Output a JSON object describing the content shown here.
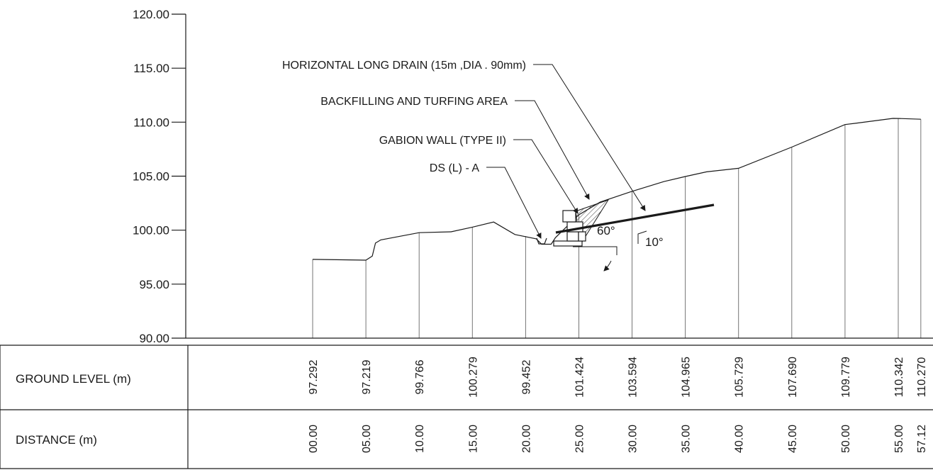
{
  "chart_data": {
    "type": "cross-section",
    "y_axis": {
      "min": 90,
      "max": 120,
      "ticks": [
        {
          "value": 90,
          "label": "90.00"
        },
        {
          "value": 95,
          "label": "95.00"
        },
        {
          "value": 100,
          "label": "100.00"
        },
        {
          "value": 105,
          "label": "105.00"
        },
        {
          "value": 110,
          "label": "110.00"
        },
        {
          "value": 115,
          "label": "115.00"
        },
        {
          "value": 120,
          "label": "120.00"
        }
      ]
    },
    "stations": [
      {
        "distance": 0,
        "distance_label": "00.00",
        "ground_level": 97.292,
        "ground_label": "97.292"
      },
      {
        "distance": 5,
        "distance_label": "05.00",
        "ground_level": 97.219,
        "ground_label": "97.219"
      },
      {
        "distance": 10,
        "distance_label": "10.00",
        "ground_level": 99.766,
        "ground_label": "99.766"
      },
      {
        "distance": 15,
        "distance_label": "15.00",
        "ground_level": 100.279,
        "ground_label": "100.279"
      },
      {
        "distance": 20,
        "distance_label": "20.00",
        "ground_level": 99.452,
        "ground_label": "99.452"
      },
      {
        "distance": 25,
        "distance_label": "25.00",
        "ground_level": 101.424,
        "ground_label": "101.424"
      },
      {
        "distance": 30,
        "distance_label": "30.00",
        "ground_level": 103.594,
        "ground_label": "103.594"
      },
      {
        "distance": 35,
        "distance_label": "35.00",
        "ground_level": 104.965,
        "ground_label": "104.965"
      },
      {
        "distance": 40,
        "distance_label": "40.00",
        "ground_level": 105.729,
        "ground_label": "105.729"
      },
      {
        "distance": 45,
        "distance_label": "45.00",
        "ground_level": 107.69,
        "ground_label": "107.690"
      },
      {
        "distance": 50,
        "distance_label": "50.00",
        "ground_level": 109.779,
        "ground_label": "109.779"
      },
      {
        "distance": 55,
        "distance_label": "55.00",
        "ground_level": 110.342,
        "ground_label": "110.342"
      },
      {
        "distance": 57.12,
        "distance_label": "57.12",
        "ground_level": 110.27,
        "ground_label": "110.270"
      }
    ],
    "profile": [
      [
        0,
        97.292
      ],
      [
        5,
        97.219
      ],
      [
        5.6,
        97.6
      ],
      [
        5.9,
        98.8
      ],
      [
        6.4,
        99.1
      ],
      [
        10,
        99.766
      ],
      [
        13,
        99.85
      ],
      [
        15,
        100.279
      ],
      [
        17,
        100.75
      ],
      [
        19,
        99.6
      ],
      [
        21,
        99.2
      ],
      [
        21.5,
        98.7
      ],
      [
        22.4,
        98.7
      ],
      [
        22.8,
        99.3
      ],
      [
        25,
        101.424
      ],
      [
        27,
        102.6
      ],
      [
        30,
        103.594
      ],
      [
        33,
        104.5
      ],
      [
        35,
        104.965
      ],
      [
        37,
        105.4
      ],
      [
        40,
        105.729
      ],
      [
        45,
        107.69
      ],
      [
        50,
        109.779
      ],
      [
        51,
        109.9
      ],
      [
        54.5,
        110.35
      ],
      [
        55,
        110.342
      ],
      [
        57.12,
        110.27
      ]
    ],
    "labels": {
      "ground_row": "GROUND LEVEL (m)",
      "distance_row": "DISTANCE (m)"
    },
    "annotations": [
      {
        "id": "drain",
        "text": "HORIZONTAL LONG DRAIN (15m ,DIA . 90mm)"
      },
      {
        "id": "backfill",
        "text": "BACKFILLING AND TURFING AREA"
      },
      {
        "id": "gabion",
        "text": "GABION WALL (TYPE II)"
      },
      {
        "id": "ds",
        "text": "DS (L) - A"
      }
    ],
    "angles": [
      {
        "id": "wall-angle",
        "text": "60°"
      },
      {
        "id": "drain-angle",
        "text": "10°"
      }
    ]
  }
}
